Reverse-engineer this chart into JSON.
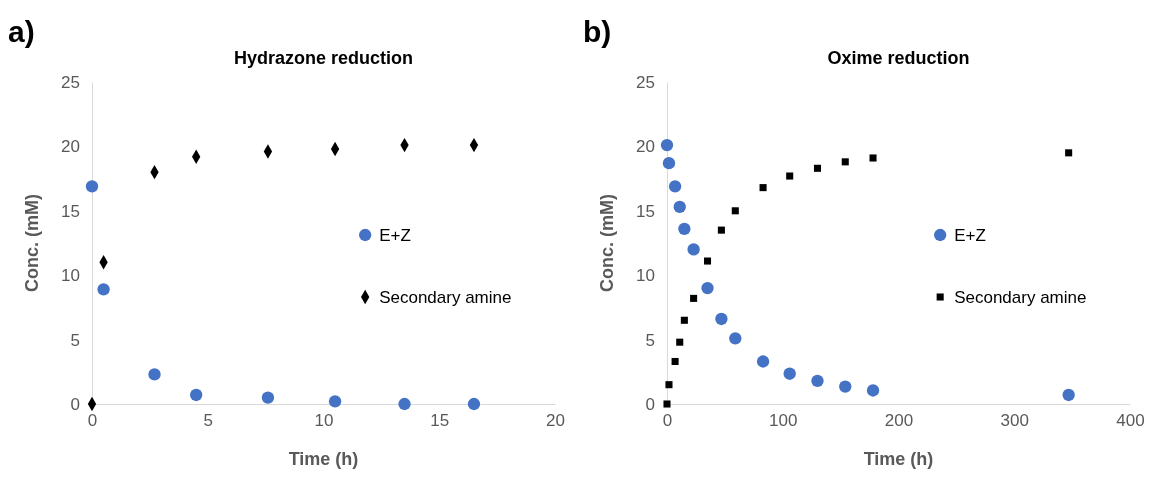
{
  "chart_data": [
    {
      "type": "scatter",
      "title": "Hydrazone reduction",
      "xlabel": "Time (h)",
      "ylabel": "Conc. (mM)",
      "annotations": [
        "a)"
      ],
      "xlim": [
        0,
        20
      ],
      "xticks": [
        0,
        5,
        10,
        15,
        20
      ],
      "ylim": [
        0,
        25
      ],
      "yticks": [
        0,
        5,
        10,
        15,
        20,
        25
      ],
      "legend": "right",
      "series": [
        {
          "name": "E+Z",
          "color": "#4472c4",
          "marker": "circle",
          "x": [
            0,
            0.5,
            2.7,
            4.5,
            7.6,
            10.5,
            13.5,
            16.5
          ],
          "values": [
            16.9,
            8.9,
            2.3,
            0.7,
            0.5,
            0.2,
            0,
            0
          ]
        },
        {
          "name": "Secondary amine",
          "color": "#000000",
          "marker": "diamond",
          "x": [
            0,
            0.5,
            2.7,
            4.5,
            7.6,
            10.5,
            13.5,
            16.5
          ],
          "values": [
            0,
            11.0,
            18.0,
            19.2,
            19.6,
            19.8,
            20.1,
            20.1
          ]
        }
      ]
    },
    {
      "type": "scatter",
      "title": "Oxime reduction",
      "xlabel": "Time (h)",
      "ylabel": "Conc. (mM)",
      "annotations": [
        "b)"
      ],
      "xlim": [
        0,
        400
      ],
      "xticks": [
        0,
        100,
        200,
        300,
        400
      ],
      "ylim": [
        0,
        25
      ],
      "yticks": [
        0,
        5,
        10,
        15,
        20,
        25
      ],
      "legend": "right",
      "series": [
        {
          "name": "E+Z",
          "color": "#4472c4",
          "marker": "circle",
          "x": [
            0,
            1.7,
            7,
            11,
            15,
            23,
            35,
            47,
            59,
            83,
            106,
            130,
            154,
            178,
            347
          ],
          "values": [
            20.1,
            18.7,
            16.9,
            15.3,
            13.6,
            12.0,
            9.0,
            6.6,
            5.1,
            3.3,
            2.35,
            1.8,
            1.35,
            1.05,
            0.7
          ]
        },
        {
          "name": "Secondary amine",
          "color": "#000000",
          "marker": "square",
          "x": [
            0,
            1.7,
            7,
            11,
            15,
            23,
            35,
            47,
            59,
            83,
            106,
            130,
            154,
            178,
            347
          ],
          "values": [
            0,
            1.5,
            3.3,
            4.8,
            6.5,
            8.2,
            11.1,
            13.5,
            15.0,
            16.8,
            17.7,
            18.3,
            18.8,
            19.1,
            19.5
          ]
        }
      ]
    }
  ]
}
